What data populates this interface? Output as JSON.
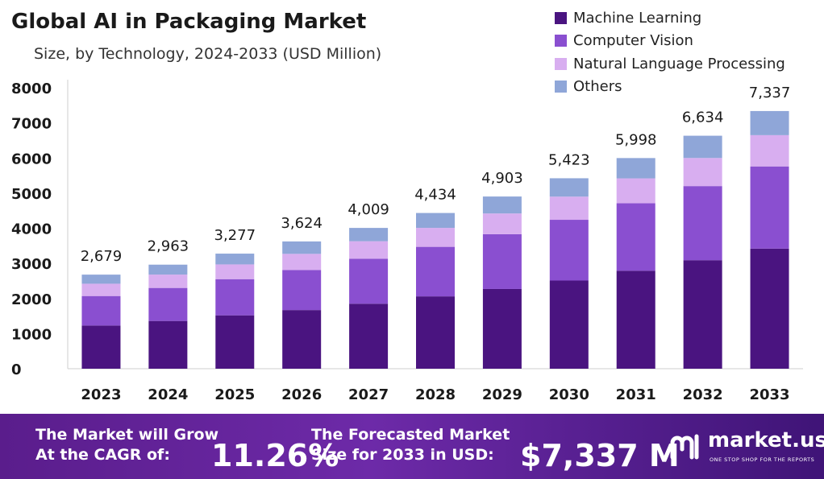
{
  "header": {
    "title": "Global AI in Packaging Market",
    "subtitle": "Size, by Technology, 2024-2033 (USD Million)"
  },
  "chart_data": {
    "type": "bar",
    "stacked": true,
    "categories": [
      "2023",
      "2024",
      "2025",
      "2026",
      "2027",
      "2028",
      "2029",
      "2030",
      "2031",
      "2032",
      "2033"
    ],
    "series": [
      {
        "name": "Machine Learning",
        "color": "#4a1480",
        "values": [
          1230,
          1360,
          1520,
          1670,
          1850,
          2060,
          2270,
          2510,
          2790,
          3090,
          3420
        ]
      },
      {
        "name": "Computer Vision",
        "color": "#8a4fd0",
        "values": [
          840,
          940,
          1030,
          1140,
          1280,
          1410,
          1560,
          1730,
          1920,
          2110,
          2340
        ]
      },
      {
        "name": "Natural Language Processing",
        "color": "#d8aef0",
        "values": [
          350,
          380,
          420,
          460,
          500,
          540,
          590,
          660,
          710,
          800,
          890
        ]
      },
      {
        "name": "Others",
        "color": "#8fa6d8",
        "values": [
          259,
          283,
          307,
          354,
          379,
          424,
          483,
          523,
          578,
          634,
          687
        ]
      }
    ],
    "totals": [
      "2,679",
      "2,963",
      "3,277",
      "3,624",
      "4,009",
      "4,434",
      "4,903",
      "5,423",
      "5,998",
      "6,634",
      "7,337"
    ],
    "ylim": [
      0,
      8000
    ],
    "yticks": [
      0,
      1000,
      2000,
      3000,
      4000,
      5000,
      6000,
      7000,
      8000
    ],
    "legend_position": "top-right",
    "grid": false
  },
  "footer": {
    "cagr_line1": "The Market will Grow",
    "cagr_line2": "At the CAGR of:",
    "cagr_value": "11.26%",
    "forecast_line1": "The Forecasted Market",
    "forecast_line2": "Size for 2033 in USD:",
    "forecast_value": "$7,337 M",
    "brand": "market.us",
    "tagline": "ONE STOP SHOP FOR THE REPORTS"
  }
}
